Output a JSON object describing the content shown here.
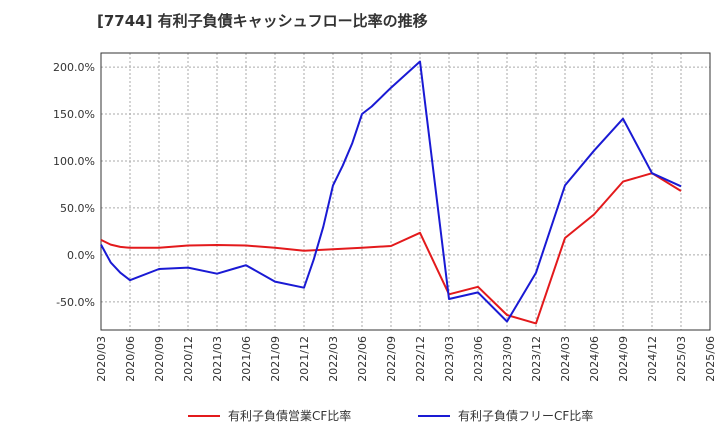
{
  "chart_data": {
    "type": "line",
    "title": "[7744]  有利子負債キャッシュフロー比率の推移",
    "xlabel": "",
    "ylabel": "",
    "ylim": [
      -80,
      215
    ],
    "yticks": [
      200,
      150,
      100,
      50,
      0,
      -50
    ],
    "ytick_labels": [
      "200.0%",
      "150.0%",
      "100.0%",
      "50.0%",
      "0.0%",
      "-50.0%"
    ],
    "grid": true,
    "legend_position": "bottom",
    "x": [
      "2020/03",
      "2020/04",
      "2020/05",
      "2020/06",
      "2020/09",
      "2020/12",
      "2021/03",
      "2021/05",
      "2021/06",
      "2021/09",
      "2021/12",
      "2022/01",
      "2022/02",
      "2022/03",
      "2022/04",
      "2022/05",
      "2022/06",
      "2022/07",
      "2022/09",
      "2022/12",
      "2023/03",
      "2023/06",
      "2023/09",
      "2023/12",
      "2024/03",
      "2024/06",
      "2024/09",
      "2024/12",
      "2025/03"
    ],
    "xticks": [
      "2020/03",
      "2020/06",
      "2020/09",
      "2020/12",
      "2021/03",
      "2021/06",
      "2021/09",
      "2021/12",
      "2022/03",
      "2022/06",
      "2022/09",
      "2022/12",
      "2023/03",
      "2023/06",
      "2023/09",
      "2023/12",
      "2024/03",
      "2024/06",
      "2024/09",
      "2024/12",
      "2025/03",
      "2025/06"
    ],
    "series": [
      {
        "name": "有利子負債営業CF比率",
        "color": "#e31a1c",
        "values": [
          16,
          11,
          8.5,
          7.5,
          7.5,
          10,
          10.5,
          null,
          10,
          7.5,
          4.5,
          null,
          null,
          6,
          null,
          null,
          7.5,
          null,
          9.5,
          23.5,
          -42,
          -34,
          -64,
          -73,
          18,
          43,
          78,
          87,
          68
        ]
      },
      {
        "name": "有利子負債フリーCF比率",
        "color": "#1a1ad4",
        "values": [
          11,
          -8,
          -19,
          -27,
          -15,
          -13.5,
          -20,
          -14,
          -11,
          -28.5,
          -35,
          -5,
          30,
          74,
          95,
          119,
          150,
          158,
          178,
          206,
          -47,
          -40,
          -71,
          -19,
          74,
          111,
          145,
          87,
          73
        ]
      }
    ]
  }
}
